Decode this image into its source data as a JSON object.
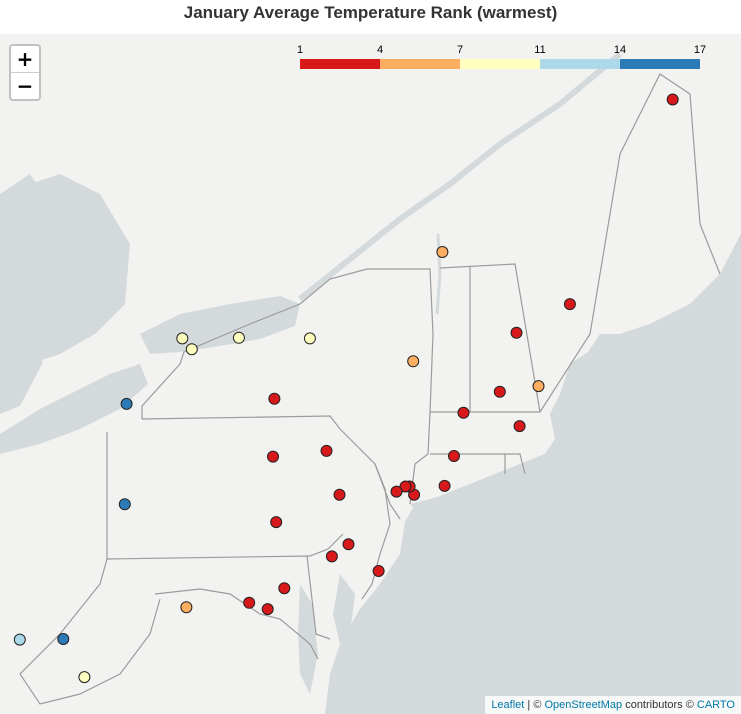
{
  "title": "January Average Temperature Rank (warmest)",
  "zoom": {
    "in_label": "+",
    "out_label": "−"
  },
  "legend": {
    "ticks": [
      "1",
      "4",
      "7",
      "11",
      "14",
      "17"
    ],
    "colors": [
      "#d7191c",
      "#fdae61",
      "#ffffbf",
      "#abd9e9",
      "#2c7bb6"
    ]
  },
  "attribution": {
    "leaflet": "Leaflet",
    "sep1": " | © ",
    "osm": "OpenStreetMap",
    "contrib": " contributors © ",
    "carto": "CARTO"
  },
  "colors": {
    "land": "#f2f2f1",
    "water": "#d4dadc",
    "border": "#9b9b9b"
  },
  "stations": [
    {
      "lat": 46.87,
      "lon": -68.02,
      "rank_class": 0
    },
    {
      "lat": 44.47,
      "lon": -73.15,
      "rank_class": 1
    },
    {
      "lat": 43.65,
      "lon": -70.31,
      "rank_class": 0
    },
    {
      "lat": 43.2,
      "lon": -71.5,
      "rank_class": 0
    },
    {
      "lat": 42.36,
      "lon": -71.01,
      "rank_class": 1
    },
    {
      "lat": 42.27,
      "lon": -71.87,
      "rank_class": 0
    },
    {
      "lat": 41.94,
      "lon": -72.68,
      "rank_class": 0
    },
    {
      "lat": 41.73,
      "lon": -71.43,
      "rank_class": 0
    },
    {
      "lat": 42.75,
      "lon": -73.8,
      "rank_class": 1
    },
    {
      "lat": 43.11,
      "lon": -76.1,
      "rank_class": 2
    },
    {
      "lat": 43.12,
      "lon": -77.68,
      "rank_class": 2
    },
    {
      "lat": 43.11,
      "lon": -78.94,
      "rank_class": 2
    },
    {
      "lat": 42.94,
      "lon": -78.73,
      "rank_class": 2
    },
    {
      "lat": 42.08,
      "lon": -80.18,
      "rank_class": 4
    },
    {
      "lat": 42.16,
      "lon": -76.89,
      "rank_class": 0
    },
    {
      "lat": 41.34,
      "lon": -75.73,
      "rank_class": 0
    },
    {
      "lat": 41.25,
      "lon": -76.92,
      "rank_class": 0
    },
    {
      "lat": 41.26,
      "lon": -72.89,
      "rank_class": 0
    },
    {
      "lat": 40.79,
      "lon": -73.1,
      "rank_class": 0
    },
    {
      "lat": 40.65,
      "lon": -73.78,
      "rank_class": 0
    },
    {
      "lat": 40.78,
      "lon": -73.88,
      "rank_class": 0
    },
    {
      "lat": 40.78,
      "lon": -73.97,
      "rank_class": 0
    },
    {
      "lat": 40.7,
      "lon": -74.17,
      "rank_class": 0
    },
    {
      "lat": 40.65,
      "lon": -75.44,
      "rank_class": 0
    },
    {
      "lat": 40.5,
      "lon": -80.22,
      "rank_class": 4
    },
    {
      "lat": 40.22,
      "lon": -76.85,
      "rank_class": 0
    },
    {
      "lat": 39.87,
      "lon": -75.24,
      "rank_class": 0
    },
    {
      "lat": 39.68,
      "lon": -75.61,
      "rank_class": 0
    },
    {
      "lat": 39.45,
      "lon": -74.57,
      "rank_class": 0
    },
    {
      "lat": 39.18,
      "lon": -76.67,
      "rank_class": 0
    },
    {
      "lat": 38.95,
      "lon": -77.45,
      "rank_class": 0
    },
    {
      "lat": 38.85,
      "lon": -77.04,
      "rank_class": 0
    },
    {
      "lat": 38.88,
      "lon": -78.85,
      "rank_class": 1
    },
    {
      "lat": 38.37,
      "lon": -82.56,
      "rank_class": 3
    },
    {
      "lat": 38.38,
      "lon": -81.59,
      "rank_class": 4
    },
    {
      "lat": 37.78,
      "lon": -81.12,
      "rank_class": 2
    }
  ]
}
